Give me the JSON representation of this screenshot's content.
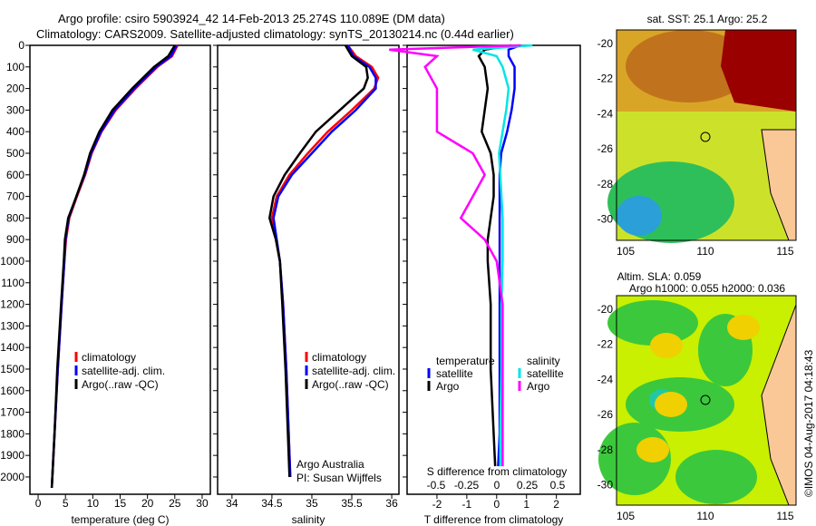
{
  "title": {
    "line1": "Argo profile: csiro 5903924_42 14-Feb-2013 25.274S 110.089E (DM data)",
    "line2": "Climatology: CARS2009. Satellite-adjusted climatology: synTS_20130214.nc (0.44d earlier)"
  },
  "colors": {
    "climatology": "#ff0000",
    "satellite": "#0000ff",
    "argo": "#000000",
    "sal_satellite": "#00e5e5",
    "sal_argo": "#ff00ff"
  },
  "chart_data": [
    {
      "type": "line",
      "name": "temperature",
      "xlabel": "temperature (deg C)",
      "xlim": [
        -1.5,
        31.5
      ],
      "ylim": [
        0,
        2080
      ],
      "xticks": [
        0,
        5,
        10,
        15,
        20,
        25,
        30
      ],
      "depth": [
        0,
        50,
        100,
        200,
        300,
        400,
        500,
        600,
        700,
        800,
        900,
        1000,
        1200,
        1500,
        1800,
        2050
      ],
      "series": [
        {
          "name": "climatology",
          "color": "#ff0000",
          "values": [
            25.5,
            24.5,
            21.8,
            17.8,
            14.2,
            11.6,
            9.8,
            8.6,
            7.1,
            5.7,
            5.1,
            4.8,
            4.3,
            3.6,
            3.0,
            2.5
          ]
        },
        {
          "name": "satellite-adj. clim.",
          "color": "#0000ff",
          "values": [
            25.3,
            24.3,
            21.6,
            17.6,
            14.0,
            11.5,
            9.7,
            8.5,
            7.0,
            5.6,
            5.0,
            4.8,
            4.3,
            3.6,
            3.0,
            2.5
          ]
        },
        {
          "name": "Argo(..raw -QC)",
          "color": "#000000",
          "values": [
            25.0,
            23.8,
            21.2,
            17.2,
            13.6,
            11.2,
            9.5,
            8.4,
            7.0,
            5.5,
            4.9,
            4.7,
            4.2,
            3.5,
            3.0,
            2.5
          ]
        }
      ],
      "legend": [
        "climatology",
        "satellite-adj. clim.",
        "Argo(..raw -QC)"
      ]
    },
    {
      "type": "line",
      "name": "salinity",
      "xlabel": "salinity",
      "xlim": [
        33.82,
        36.09
      ],
      "ylim": [
        0,
        2080
      ],
      "xticks": [
        34,
        34.5,
        35,
        35.5,
        36
      ],
      "depth": [
        0,
        50,
        100,
        150,
        200,
        300,
        400,
        500,
        600,
        700,
        800,
        900,
        1000,
        1200,
        1500,
        2000
      ],
      "series": [
        {
          "name": "climatology",
          "color": "#ff0000",
          "values": [
            35.45,
            35.55,
            35.75,
            35.83,
            35.78,
            35.5,
            35.2,
            34.95,
            34.72,
            34.56,
            34.5,
            34.55,
            34.6,
            34.64,
            34.68,
            34.73
          ]
        },
        {
          "name": "satellite-adj. clim.",
          "color": "#0000ff",
          "values": [
            35.45,
            35.52,
            35.72,
            35.8,
            35.8,
            35.55,
            35.25,
            35.0,
            34.75,
            34.58,
            34.52,
            34.56,
            34.6,
            34.64,
            34.68,
            34.73
          ]
        },
        {
          "name": "Argo(..raw -QC)",
          "color": "#000000",
          "values": [
            35.42,
            35.5,
            35.68,
            35.7,
            35.65,
            35.35,
            35.05,
            34.85,
            34.66,
            34.52,
            34.47,
            34.55,
            34.6,
            34.63,
            34.67,
            34.72
          ]
        }
      ],
      "legend": [
        "climatology",
        "satellite-adj. clim.",
        "Argo(..raw -QC)"
      ],
      "annotation": [
        "Argo Australia",
        "PI: Susan Wijffels"
      ]
    },
    {
      "type": "line",
      "name": "difference",
      "xlabel": "T difference from climatology",
      "x2label": "S difference from climatology",
      "xlim": [
        -3,
        2.8
      ],
      "ylim": [
        0,
        2080
      ],
      "xticks": [
        -2,
        -1,
        0,
        1,
        2
      ],
      "x2ticks": [
        "-0.5",
        "-0.25",
        "0",
        "0.25",
        "0.5"
      ],
      "depth": [
        0,
        20,
        50,
        100,
        200,
        300,
        400,
        500,
        600,
        700,
        800,
        900,
        1000,
        1200,
        1500,
        1800,
        1950
      ],
      "series": [
        {
          "name": "T satellite",
          "color": "#0000ff",
          "values": [
            0.8,
            0.4,
            0.4,
            0.6,
            0.6,
            0.5,
            0.35,
            0.15,
            0.1,
            0.1,
            0.1,
            0.1,
            0.1,
            0.1,
            0.1,
            0.1,
            0.05
          ]
        },
        {
          "name": "T Argo",
          "color": "#000000",
          "values": [
            0.5,
            -0.4,
            -0.6,
            -0.4,
            -0.3,
            -0.4,
            -0.5,
            -0.2,
            -0.1,
            -0.1,
            -0.2,
            -0.3,
            -0.3,
            -0.2,
            -0.2,
            -0.1,
            -0.05
          ]
        },
        {
          "name": "S satellite",
          "color": "#00e5e5",
          "values": [
            0.3,
            -0.2,
            0.0,
            0.05,
            0.1,
            0.08,
            0.05,
            0.02,
            0.03,
            0.04,
            0.05,
            0.05,
            0.05,
            0.04,
            0.04,
            0.03,
            0.03
          ]
        },
        {
          "name": "S Argo",
          "color": "#ff00ff",
          "values": [
            0.2,
            -0.9,
            -0.5,
            -0.6,
            -0.5,
            -0.5,
            -0.5,
            -0.2,
            -0.1,
            -0.2,
            -0.3,
            -0.1,
            0,
            0.05,
            0.05,
            0.05,
            0.05
          ]
        }
      ],
      "legend": {
        "temperature": "temperature",
        "salinity": "salinity",
        "satellite": "satellite",
        "argo": "Argo"
      }
    }
  ],
  "maps": [
    {
      "title": "sat. SST: 25.1  Argo: 25.2",
      "xticks": [
        "105",
        "110",
        "115"
      ],
      "yticks": [
        "-20",
        "-22",
        "-24",
        "-26",
        "-28",
        "-30"
      ]
    },
    {
      "title1": "Altim. SLA: 0.059",
      "title2": "Argo h1000: 0.055 h2000: 0.036",
      "xticks": [
        "105",
        "110",
        "115"
      ],
      "yticks": [
        "-20",
        "-22",
        "-24",
        "-26",
        "-28",
        "-30"
      ]
    }
  ],
  "credit": "©IMOS 04-Aug-2017 04:18:43"
}
